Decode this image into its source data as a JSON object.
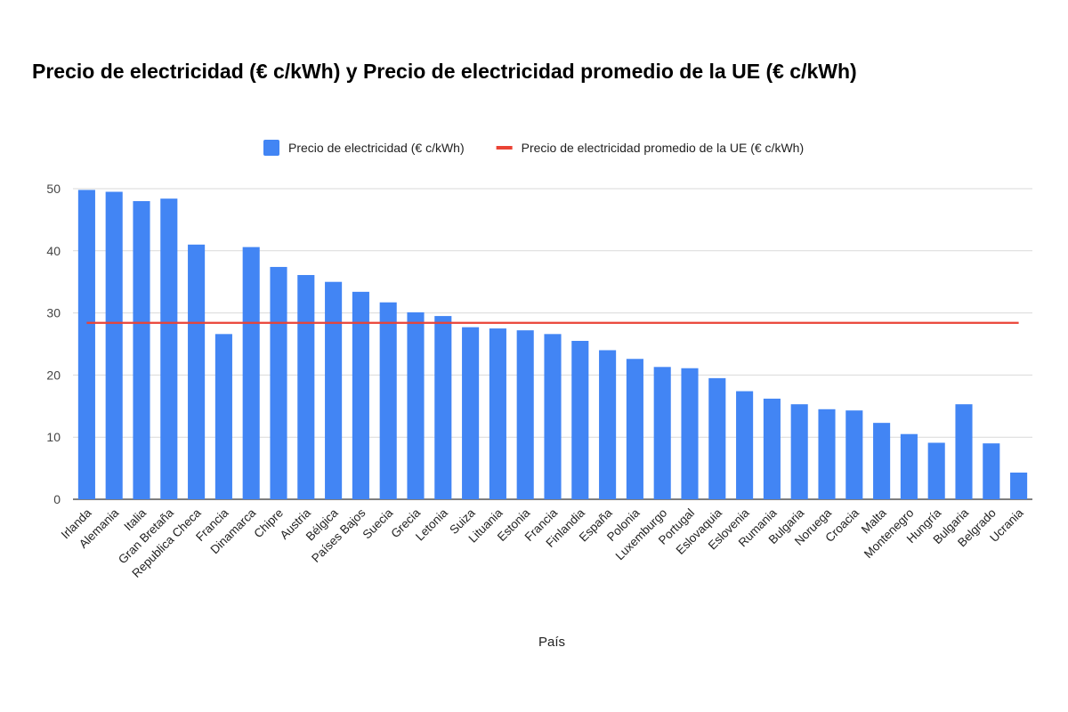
{
  "title": "Precio de electricidad (€ c/kWh) y Precio de electricidad promedio de la UE (€ c/kWh)",
  "chart_data": {
    "type": "bar",
    "title": "Precio de electricidad (€ c/kWh) y Precio de electricidad promedio de la UE (€ c/kWh)",
    "xlabel": "País",
    "ylabel": "",
    "ylim": [
      0,
      50
    ],
    "yticks": [
      0,
      10,
      20,
      30,
      40,
      50
    ],
    "grid": true,
    "legend_position": "top",
    "categories": [
      "Irlanda",
      "Alemania",
      "Italia",
      "Gran Bretaña",
      "Republica Checa",
      "Francia",
      "Dinamarca",
      "Chipre",
      "Austria",
      "Bélgica",
      "Países Bajos",
      "Suecia",
      "Grecia",
      "Letonia",
      "Suiza",
      "Lituania",
      "Estonia",
      "Francia",
      "Finlandia",
      "España",
      "Polonia",
      "Luxemburgo",
      "Portugal",
      "Eslovaquia",
      "Eslovenia",
      "Rumania",
      "Bulgaria",
      "Noruega",
      "Croacia",
      "Malta",
      "Montenegro",
      "Hungría",
      "Bulgaria",
      "Belgrado",
      "Ucrania"
    ],
    "series": [
      {
        "name": "Precio de electricidad (€ c/kWh)",
        "kind": "bar",
        "color": "#4285f4",
        "values": [
          49.8,
          49.5,
          48.0,
          48.4,
          41.0,
          26.6,
          40.6,
          37.4,
          36.1,
          35.0,
          33.4,
          31.7,
          30.1,
          29.5,
          27.7,
          27.5,
          27.2,
          26.6,
          25.5,
          24.0,
          22.6,
          21.3,
          21.1,
          19.5,
          17.4,
          16.2,
          15.3,
          14.5,
          14.3,
          12.3,
          10.5,
          9.1,
          15.3,
          9.0,
          4.3
        ]
      },
      {
        "name": "Precio de electricidad promedio de la UE (€ c/kWh)",
        "kind": "line",
        "color": "#ea4335",
        "values": [
          28.4,
          28.4,
          28.4,
          28.4,
          28.4,
          28.4,
          28.4,
          28.4,
          28.4,
          28.4,
          28.4,
          28.4,
          28.4,
          28.4,
          28.4,
          28.4,
          28.4,
          28.4,
          28.4,
          28.4,
          28.4,
          28.4,
          28.4,
          28.4,
          28.4,
          28.4,
          28.4,
          28.4,
          28.4,
          28.4,
          28.4,
          28.4,
          28.4,
          28.4,
          28.4
        ]
      }
    ]
  }
}
